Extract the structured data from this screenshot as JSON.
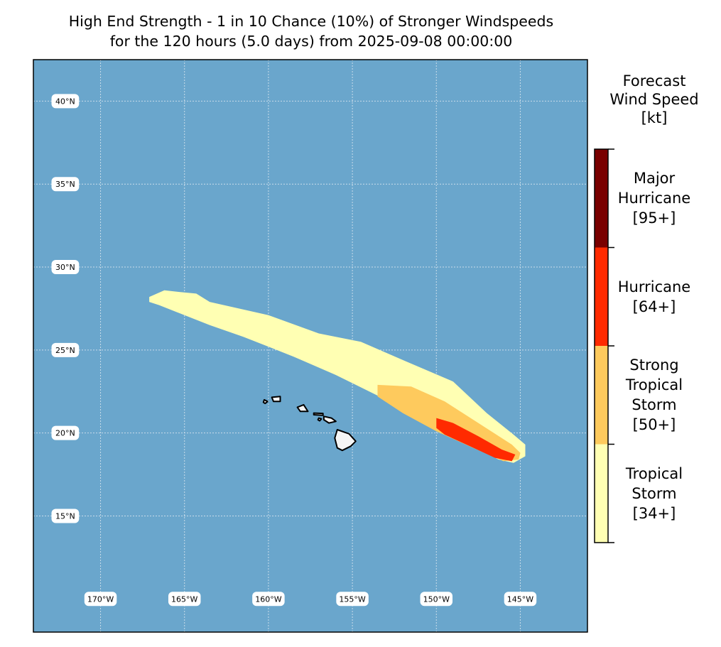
{
  "title": {
    "line1": "High End Strength - 1 in 10 Chance (10%) of Stronger Windspeeds",
    "line2": "for the 120 hours (5.0 days) from 2025-09-08 00:00:00"
  },
  "map": {
    "lon_range": [
      -174,
      -141
    ],
    "lat_range": [
      8,
      42.5
    ],
    "lat_ticks": [
      {
        "value": 40,
        "label": "40°N"
      },
      {
        "value": 35,
        "label": "35°N"
      },
      {
        "value": 30,
        "label": "30°N"
      },
      {
        "value": 25,
        "label": "25°N"
      },
      {
        "value": 20,
        "label": "20°N"
      },
      {
        "value": 15,
        "label": "15°N"
      }
    ],
    "lon_ticks": [
      {
        "value": -170,
        "label": "170°W"
      },
      {
        "value": -165,
        "label": "165°W"
      },
      {
        "value": -160,
        "label": "160°W"
      },
      {
        "value": -155,
        "label": "155°W"
      },
      {
        "value": -150,
        "label": "150°W"
      },
      {
        "value": -145,
        "label": "145°W"
      }
    ],
    "lon_label_lat": 10,
    "lat_label_lon": -172.1,
    "ocean_color": "#6aa6cc",
    "gridline_color": "#c9dcea",
    "land_color": "#f5f5f5"
  },
  "wind_zones": [
    {
      "category": "tropical-storm",
      "color": "#ffffb3",
      "polygon": [
        [
          -167.1,
          28.2
        ],
        [
          -166.2,
          28.6
        ],
        [
          -165.3,
          28.5
        ],
        [
          -164.3,
          28.4
        ],
        [
          -163.5,
          27.9
        ],
        [
          -160.0,
          27.1
        ],
        [
          -157.0,
          26.0
        ],
        [
          -154.5,
          25.5
        ],
        [
          -152.0,
          24.4
        ],
        [
          -149.0,
          23.1
        ],
        [
          -147.0,
          21.2
        ],
        [
          -145.4,
          19.9
        ],
        [
          -144.7,
          19.3
        ],
        [
          -144.7,
          18.6
        ],
        [
          -145.4,
          18.2
        ],
        [
          -146.3,
          18.4
        ],
        [
          -148.0,
          19.3
        ],
        [
          -150.5,
          20.6
        ],
        [
          -153.0,
          22.0
        ],
        [
          -156.0,
          23.5
        ],
        [
          -158.5,
          24.6
        ],
        [
          -161.5,
          25.8
        ],
        [
          -163.5,
          26.5
        ],
        [
          -165.5,
          27.3
        ],
        [
          -166.5,
          27.7
        ],
        [
          -167.1,
          27.9
        ]
      ]
    },
    {
      "category": "strong-tropical-storm",
      "color": "#feca5d",
      "polygon": [
        [
          -153.5,
          22.9
        ],
        [
          -151.5,
          22.8
        ],
        [
          -149.5,
          21.9
        ],
        [
          -147.5,
          20.6
        ],
        [
          -145.5,
          19.3
        ],
        [
          -145.0,
          18.8
        ],
        [
          -145.1,
          18.4
        ],
        [
          -146.0,
          18.3
        ],
        [
          -147.8,
          19.1
        ],
        [
          -150.0,
          20.1
        ],
        [
          -152.0,
          21.2
        ],
        [
          -153.5,
          22.2
        ]
      ]
    },
    {
      "category": "hurricane",
      "color": "#ff2a00",
      "polygon": [
        [
          -150.0,
          20.9
        ],
        [
          -149.0,
          20.6
        ],
        [
          -147.5,
          19.8
        ],
        [
          -146.1,
          19.0
        ],
        [
          -145.3,
          18.7
        ],
        [
          -145.5,
          18.3
        ],
        [
          -146.5,
          18.5
        ],
        [
          -148.0,
          19.2
        ],
        [
          -149.5,
          19.9
        ],
        [
          -150.0,
          20.3
        ]
      ]
    }
  ],
  "islands": [
    {
      "name": "Hawaii",
      "polygon": [
        [
          -155.9,
          20.2
        ],
        [
          -155.2,
          19.95
        ],
        [
          -154.8,
          19.5
        ],
        [
          -155.1,
          19.2
        ],
        [
          -155.6,
          18.95
        ],
        [
          -155.9,
          19.1
        ],
        [
          -156.05,
          19.7
        ]
      ]
    },
    {
      "name": "Maui",
      "polygon": [
        [
          -156.7,
          21.0
        ],
        [
          -156.25,
          20.9
        ],
        [
          -155.98,
          20.7
        ],
        [
          -156.4,
          20.6
        ],
        [
          -156.7,
          20.8
        ]
      ]
    },
    {
      "name": "Molokai",
      "polygon": [
        [
          -157.3,
          21.2
        ],
        [
          -156.75,
          21.18
        ],
        [
          -156.75,
          21.07
        ],
        [
          -157.3,
          21.1
        ]
      ]
    },
    {
      "name": "Lanai",
      "polygon": [
        [
          -157.0,
          20.9
        ],
        [
          -156.85,
          20.85
        ],
        [
          -156.95,
          20.73
        ],
        [
          -157.05,
          20.8
        ]
      ]
    },
    {
      "name": "Oahu",
      "polygon": [
        [
          -158.28,
          21.55
        ],
        [
          -157.9,
          21.7
        ],
        [
          -157.65,
          21.3
        ],
        [
          -158.1,
          21.3
        ]
      ]
    },
    {
      "name": "Kauai",
      "polygon": [
        [
          -159.8,
          22.15
        ],
        [
          -159.3,
          22.2
        ],
        [
          -159.3,
          21.9
        ],
        [
          -159.7,
          21.9
        ]
      ]
    },
    {
      "name": "Niihau",
      "polygon": [
        [
          -160.25,
          22.0
        ],
        [
          -160.05,
          21.9
        ],
        [
          -160.2,
          21.78
        ],
        [
          -160.3,
          21.85
        ]
      ]
    }
  ],
  "colorbar": {
    "title_lines": [
      "Forecast",
      "Wind Speed",
      "[kt]"
    ],
    "bins": [
      {
        "lines": [
          "Major",
          "Hurricane",
          "[95+]"
        ],
        "color": "#7a0000"
      },
      {
        "lines": [
          "Hurricane",
          "[64+]"
        ],
        "color": "#ff2a00"
      },
      {
        "lines": [
          "Strong",
          "Tropical",
          "Storm",
          "[50+]"
        ],
        "color": "#feca5d"
      },
      {
        "lines": [
          "Tropical",
          "Storm",
          "[34+]"
        ],
        "color": "#ffffb3"
      }
    ]
  }
}
